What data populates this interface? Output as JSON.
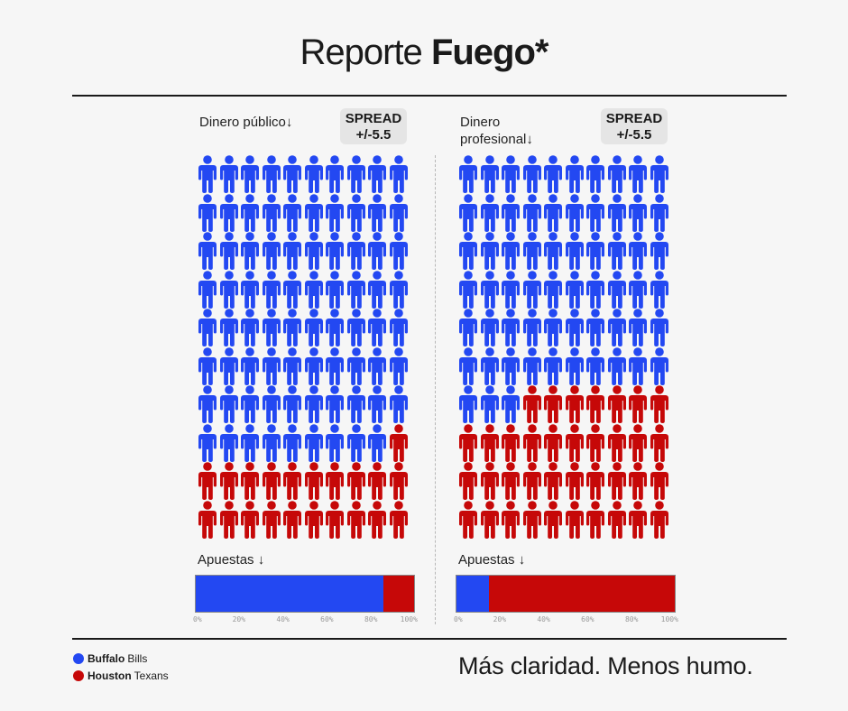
{
  "header": {
    "title_regular": "Reporte",
    "title_bold": "Fuego*"
  },
  "colors": {
    "team_a": "#2348f2",
    "team_b": "#c60808"
  },
  "chart_data": [
    {
      "type": "bar",
      "label": "Dinero público↓",
      "spread": {
        "label": "SPREAD",
        "value": "+/-5.5"
      },
      "pictograph": {
        "rows": 10,
        "cols": 10,
        "team_a_count": 79,
        "team_b_count": 21
      },
      "bar_label": "Apuestas ↓",
      "series": [
        {
          "name": "Buffalo Bills",
          "value": 86
        },
        {
          "name": "Houston Texans",
          "value": 14
        }
      ],
      "ticks": [
        "0%",
        "20%",
        "40%",
        "60%",
        "80%",
        "100%"
      ]
    },
    {
      "type": "bar",
      "label": "Dinero profesional↓",
      "spread": {
        "label": "SPREAD",
        "value": "+/-5.5"
      },
      "pictograph": {
        "rows": 10,
        "cols": 10,
        "team_a_count": 63,
        "team_b_count": 37
      },
      "bar_label": "Apuestas ↓",
      "series": [
        {
          "name": "Buffalo Bills",
          "value": 15
        },
        {
          "name": "Houston Texans",
          "value": 85
        }
      ],
      "ticks": [
        "0%",
        "20%",
        "40%",
        "60%",
        "80%",
        "100%"
      ]
    }
  ],
  "legend": [
    {
      "bold": "Buffalo",
      "rest": "Bills"
    },
    {
      "bold": "Houston",
      "rest": "Texans"
    }
  ],
  "tagline": "Más claridad. Menos humo."
}
